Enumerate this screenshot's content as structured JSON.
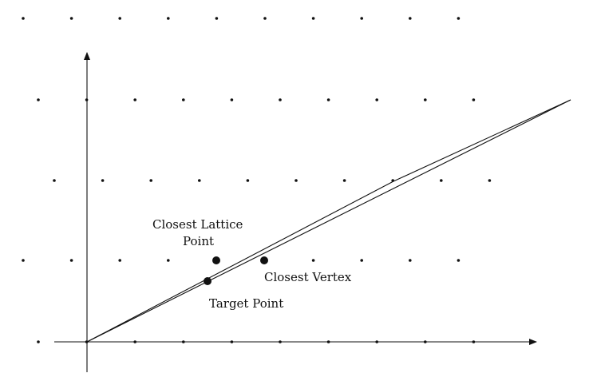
{
  "labels": {
    "closest_lattice_line1": "Closest Lattice",
    "closest_lattice_line2": "Point",
    "closest_vertex": "Closest Vertex",
    "target_point": "Target Point"
  },
  "colors": {
    "ink": "#111111",
    "background": "#ffffff"
  }
}
